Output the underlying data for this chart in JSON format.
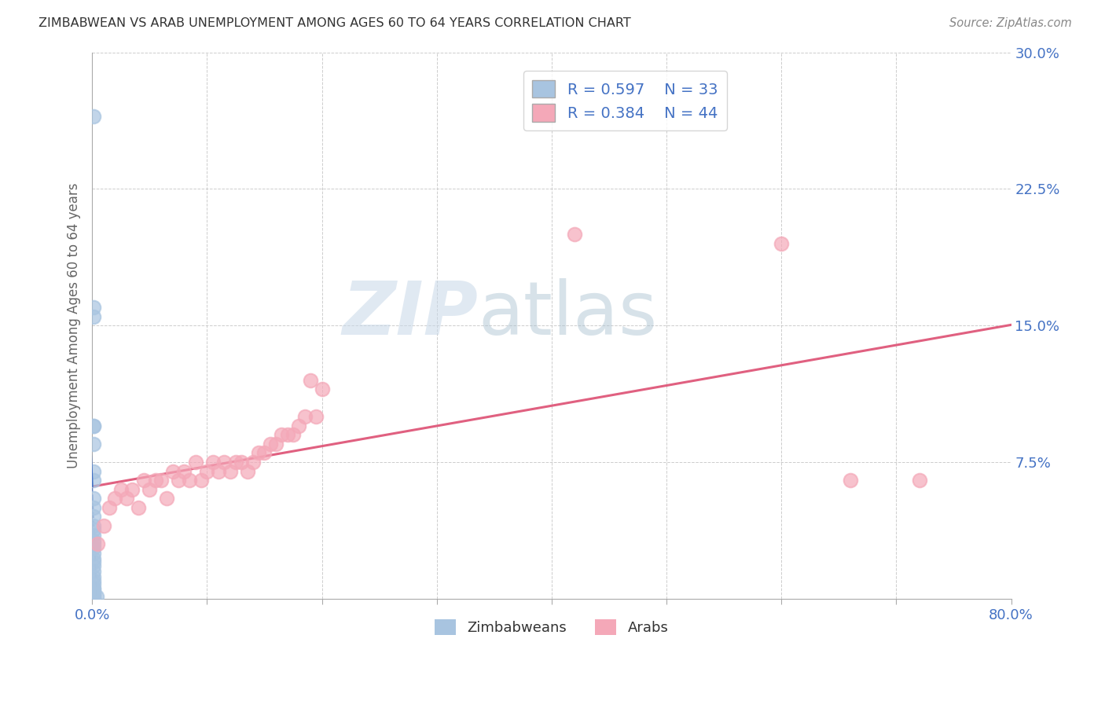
{
  "title": "ZIMBABWEAN VS ARAB UNEMPLOYMENT AMONG AGES 60 TO 64 YEARS CORRELATION CHART",
  "source": "Source: ZipAtlas.com",
  "ylabel": "Unemployment Among Ages 60 to 64 years",
  "xlim": [
    0.0,
    0.8
  ],
  "ylim": [
    0.0,
    0.3
  ],
  "xticks": [
    0.0,
    0.1,
    0.2,
    0.3,
    0.4,
    0.5,
    0.6,
    0.7,
    0.8
  ],
  "xticklabels": [
    "0.0%",
    "",
    "",
    "",
    "",
    "",
    "",
    "",
    "80.0%"
  ],
  "yticks": [
    0.0,
    0.075,
    0.15,
    0.225,
    0.3
  ],
  "yticklabels": [
    "",
    "7.5%",
    "15.0%",
    "22.5%",
    "30.0%"
  ],
  "zim_r": 0.597,
  "zim_n": 33,
  "arab_r": 0.384,
  "arab_n": 44,
  "zim_color": "#a8c4e0",
  "arab_color": "#f4a8b8",
  "zim_line_color": "#4472c4",
  "arab_line_color": "#e06080",
  "watermark_zip": "ZIP",
  "watermark_atlas": "atlas",
  "legend_text_color": "#4472c4",
  "zim_scatter_x": [
    0.001,
    0.001,
    0.001,
    0.001,
    0.001,
    0.001,
    0.001,
    0.001,
    0.001,
    0.001,
    0.001,
    0.001,
    0.001,
    0.001,
    0.001,
    0.001,
    0.001,
    0.001,
    0.001,
    0.001,
    0.001,
    0.001,
    0.001,
    0.001,
    0.001,
    0.001,
    0.001,
    0.001,
    0.001,
    0.001,
    0.001,
    0.004,
    0.001
  ],
  "zim_scatter_y": [
    0.265,
    0.16,
    0.155,
    0.095,
    0.095,
    0.085,
    0.07,
    0.065,
    0.055,
    0.05,
    0.045,
    0.04,
    0.038,
    0.035,
    0.032,
    0.03,
    0.028,
    0.025,
    0.022,
    0.02,
    0.018,
    0.015,
    0.012,
    0.01,
    0.008,
    0.006,
    0.005,
    0.004,
    0.003,
    0.002,
    0.001,
    0.001,
    0.0
  ],
  "arab_scatter_x": [
    0.005,
    0.01,
    0.015,
    0.02,
    0.025,
    0.03,
    0.035,
    0.04,
    0.045,
    0.05,
    0.055,
    0.06,
    0.065,
    0.07,
    0.075,
    0.08,
    0.085,
    0.09,
    0.095,
    0.1,
    0.105,
    0.11,
    0.115,
    0.12,
    0.125,
    0.13,
    0.135,
    0.14,
    0.145,
    0.15,
    0.155,
    0.16,
    0.165,
    0.17,
    0.175,
    0.18,
    0.185,
    0.19,
    0.195,
    0.2,
    0.42,
    0.6,
    0.66,
    0.72
  ],
  "arab_scatter_y": [
    0.03,
    0.04,
    0.05,
    0.055,
    0.06,
    0.055,
    0.06,
    0.05,
    0.065,
    0.06,
    0.065,
    0.065,
    0.055,
    0.07,
    0.065,
    0.07,
    0.065,
    0.075,
    0.065,
    0.07,
    0.075,
    0.07,
    0.075,
    0.07,
    0.075,
    0.075,
    0.07,
    0.075,
    0.08,
    0.08,
    0.085,
    0.085,
    0.09,
    0.09,
    0.09,
    0.095,
    0.1,
    0.12,
    0.1,
    0.115,
    0.2,
    0.195,
    0.065,
    0.065
  ]
}
